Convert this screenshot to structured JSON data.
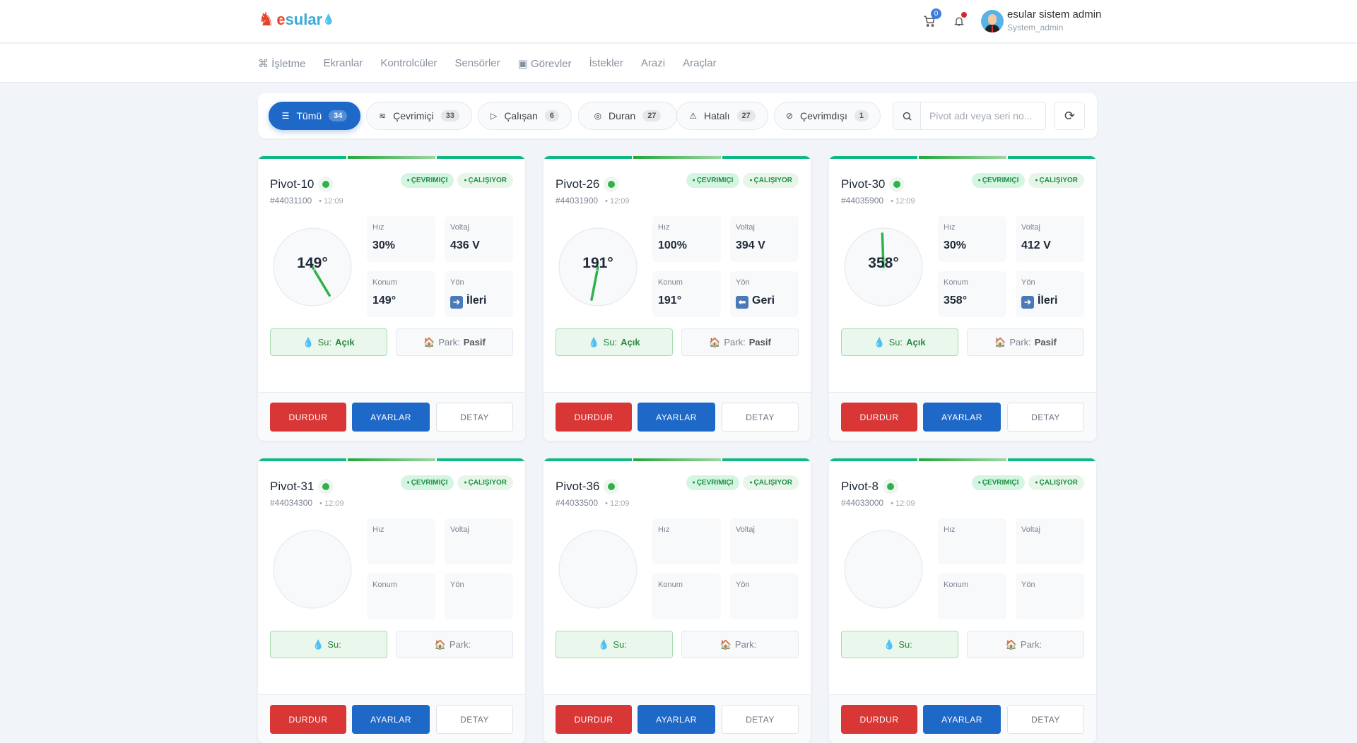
{
  "header": {
    "logo_text": "esular",
    "cart_count": "0",
    "user_name": "esular sistem admin",
    "user_role": "System_admin"
  },
  "nav": {
    "items": [
      {
        "label": "İşletme",
        "icon": "command-icon"
      },
      {
        "label": "Ekranlar"
      },
      {
        "label": "Kontrolcüler"
      },
      {
        "label": "Sensörler"
      },
      {
        "label": "Görevler",
        "icon": "briefcase-icon"
      },
      {
        "label": "İstekler"
      },
      {
        "label": "Arazi"
      },
      {
        "label": "Araçlar"
      }
    ]
  },
  "filters": [
    {
      "label": "Tümü",
      "count": "34",
      "icon": "list-icon",
      "active": true
    },
    {
      "label": "Çevrimiçi",
      "count": "33",
      "icon": "wifi-icon"
    },
    {
      "label": "Çalışan",
      "count": "6",
      "icon": "play-icon"
    },
    {
      "label": "Duran",
      "count": "27",
      "icon": "pause-icon"
    },
    {
      "label": "Hatalı",
      "count": "27",
      "icon": "warning-icon"
    },
    {
      "label": "Çevrimdışı",
      "count": "1",
      "icon": "wifi-off-icon"
    }
  ],
  "search": {
    "placeholder": "Pivot adı veya seri no..."
  },
  "labels": {
    "online": "ÇEVRIMIÇI",
    "running": "ÇALIŞIYOR",
    "speed": "Hız",
    "voltage": "Voltaj",
    "position": "Konum",
    "direction": "Yön",
    "water": "Su:",
    "park": "Park:",
    "stop": "DURDUR",
    "settings": "AYARLAR",
    "detail": "DETAY"
  },
  "colors": {
    "primary": "#1e68c8",
    "danger": "#d93636",
    "success": "#2fb24a"
  },
  "pivots": [
    {
      "name": "Pivot-10",
      "serial": "#44031100",
      "time": "12:09",
      "angle": 149,
      "angle_label": "149°",
      "speed": "30%",
      "voltage": "436 V",
      "position": "149°",
      "direction": "İleri",
      "direction_arrow": "➜",
      "water": "Açık",
      "park": "Pasif"
    },
    {
      "name": "Pivot-26",
      "serial": "#44031900",
      "time": "12:09",
      "angle": 191,
      "angle_label": "191°",
      "speed": "100%",
      "voltage": "394 V",
      "position": "191°",
      "direction": "Geri",
      "direction_arrow": "⬅",
      "water": "Açık",
      "park": "Pasif"
    },
    {
      "name": "Pivot-30",
      "serial": "#44035900",
      "time": "12:09",
      "angle": 358,
      "angle_label": "358°",
      "speed": "30%",
      "voltage": "412 V",
      "position": "358°",
      "direction": "İleri",
      "direction_arrow": "➜",
      "water": "Açık",
      "park": "Pasif"
    },
    {
      "name": "Pivot-31",
      "serial": "#44034300",
      "time": "12:09"
    },
    {
      "name": "Pivot-36",
      "serial": "#44033500",
      "time": "12:09"
    },
    {
      "name": "Pivot-8",
      "serial": "#44033000",
      "time": "12:09"
    }
  ]
}
